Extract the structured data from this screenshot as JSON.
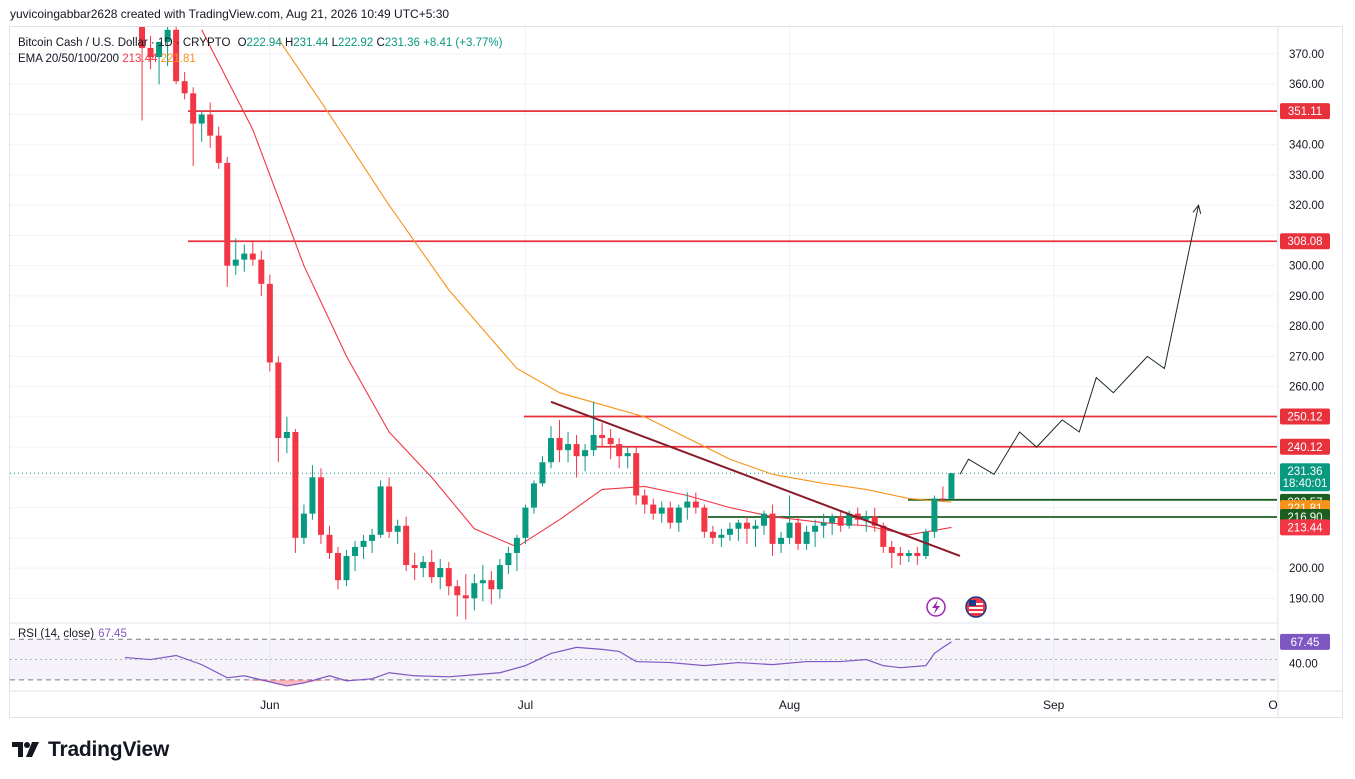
{
  "header": {
    "credit": "yuvicoingabbar2628 created with TradingView.com, Aug 21, 2026 10:49 UTC+5:30"
  },
  "legend": {
    "symbol": "Bitcoin Cash / U.S. Dollar · 1D · CRYPTO",
    "o_label": "O",
    "o": "222.94",
    "h_label": "H",
    "h": "231.44",
    "l_label": "L",
    "l": "222.92",
    "c_label": "C",
    "c": "231.36",
    "change": "+8.41 (+3.77%)",
    "ema_label": "EMA 20/50/100/200",
    "ema_a": "213.44",
    "ema_b": "221.81"
  },
  "rsi": {
    "label": "RSI (14, close)",
    "value": "67.45",
    "tick": "40.00"
  },
  "footer": {
    "brand": "TradingView"
  },
  "colors": {
    "up": "#089981",
    "down": "#f23645",
    "ema20": "#f23645",
    "ema50": "#f7931a",
    "resistance": "#e8313b",
    "support": "#1b5e20",
    "trendline": "#8b1a2b",
    "rsi": "#7e57c2"
  },
  "chart_data": {
    "type": "candlestick",
    "title": "Bitcoin Cash / U.S. Dollar · 1D · CRYPTO",
    "ylim": [
      182,
      377
    ],
    "y_ticks": [
      "370.00",
      "360.00",
      "340.00",
      "330.00",
      "320.00",
      "300.00",
      "290.00",
      "280.00",
      "270.00",
      "260.00",
      "200.00",
      "190.00"
    ],
    "x_ticks": [
      "Jun",
      "Jul",
      "Aug",
      "Sep",
      "O"
    ],
    "candles": [
      {
        "d": "2026-05-17",
        "o": 379,
        "h": 381,
        "l": 348,
        "c": 372
      },
      {
        "d": "2026-05-18",
        "o": 372,
        "h": 376,
        "l": 365,
        "c": 369
      },
      {
        "d": "2026-05-19",
        "o": 369,
        "h": 373,
        "l": 360,
        "c": 374
      },
      {
        "d": "2026-05-20",
        "o": 374,
        "h": 379,
        "l": 366,
        "c": 378
      },
      {
        "d": "2026-05-21",
        "o": 378,
        "h": 381,
        "l": 360,
        "c": 361
      },
      {
        "d": "2026-05-22",
        "o": 361,
        "h": 364,
        "l": 355,
        "c": 357
      },
      {
        "d": "2026-05-23",
        "o": 357,
        "h": 359,
        "l": 333,
        "c": 347
      },
      {
        "d": "2026-05-24",
        "o": 347,
        "h": 351,
        "l": 341,
        "c": 350
      },
      {
        "d": "2026-05-25",
        "o": 350,
        "h": 354,
        "l": 339,
        "c": 343
      },
      {
        "d": "2026-05-26",
        "o": 343,
        "h": 346,
        "l": 332,
        "c": 334
      },
      {
        "d": "2026-05-27",
        "o": 334,
        "h": 336,
        "l": 293,
        "c": 300
      },
      {
        "d": "2026-05-28",
        "o": 300,
        "h": 309,
        "l": 297,
        "c": 302
      },
      {
        "d": "2026-05-29",
        "o": 302,
        "h": 307,
        "l": 298,
        "c": 304
      },
      {
        "d": "2026-05-30",
        "o": 304,
        "h": 308,
        "l": 300,
        "c": 302
      },
      {
        "d": "2026-05-31",
        "o": 302,
        "h": 305,
        "l": 290,
        "c": 294
      },
      {
        "d": "2026-06-01",
        "o": 294,
        "h": 297,
        "l": 265,
        "c": 268
      },
      {
        "d": "2026-06-02",
        "o": 268,
        "h": 270,
        "l": 235,
        "c": 243
      },
      {
        "d": "2026-06-03",
        "o": 243,
        "h": 250,
        "l": 238,
        "c": 245
      },
      {
        "d": "2026-06-04",
        "o": 245,
        "h": 246,
        "l": 205,
        "c": 210
      },
      {
        "d": "2026-06-05",
        "o": 210,
        "h": 221,
        "l": 208,
        "c": 218
      },
      {
        "d": "2026-06-06",
        "o": 218,
        "h": 234,
        "l": 216,
        "c": 230
      },
      {
        "d": "2026-06-07",
        "o": 230,
        "h": 233,
        "l": 208,
        "c": 211
      },
      {
        "d": "2026-06-08",
        "o": 211,
        "h": 214,
        "l": 203,
        "c": 205
      },
      {
        "d": "2026-06-09",
        "o": 205,
        "h": 207,
        "l": 193,
        "c": 196
      },
      {
        "d": "2026-06-10",
        "o": 196,
        "h": 206,
        "l": 194,
        "c": 204
      },
      {
        "d": "2026-06-11",
        "o": 204,
        "h": 209,
        "l": 199,
        "c": 207
      },
      {
        "d": "2026-06-12",
        "o": 207,
        "h": 211,
        "l": 203,
        "c": 209
      },
      {
        "d": "2026-06-13",
        "o": 209,
        "h": 213,
        "l": 205,
        "c": 211
      },
      {
        "d": "2026-06-14",
        "o": 211,
        "h": 229,
        "l": 210,
        "c": 227
      },
      {
        "d": "2026-06-15",
        "o": 227,
        "h": 230,
        "l": 210,
        "c": 212
      },
      {
        "d": "2026-06-16",
        "o": 212,
        "h": 216,
        "l": 208,
        "c": 214
      },
      {
        "d": "2026-06-17",
        "o": 214,
        "h": 217,
        "l": 199,
        "c": 201
      },
      {
        "d": "2026-06-18",
        "o": 201,
        "h": 205,
        "l": 196,
        "c": 200
      },
      {
        "d": "2026-06-19",
        "o": 200,
        "h": 204,
        "l": 197,
        "c": 202
      },
      {
        "d": "2026-06-20",
        "o": 202,
        "h": 206,
        "l": 195,
        "c": 197
      },
      {
        "d": "2026-06-21",
        "o": 197,
        "h": 203,
        "l": 193,
        "c": 200
      },
      {
        "d": "2026-06-22",
        "o": 200,
        "h": 202,
        "l": 191,
        "c": 194
      },
      {
        "d": "2026-06-23",
        "o": 194,
        "h": 196,
        "l": 184,
        "c": 191
      },
      {
        "d": "2026-06-24",
        "o": 191,
        "h": 198,
        "l": 183,
        "c": 190
      },
      {
        "d": "2026-06-25",
        "o": 190,
        "h": 198,
        "l": 186,
        "c": 195
      },
      {
        "d": "2026-06-26",
        "o": 195,
        "h": 201,
        "l": 189,
        "c": 196
      },
      {
        "d": "2026-06-27",
        "o": 196,
        "h": 199,
        "l": 188,
        "c": 193
      },
      {
        "d": "2026-06-28",
        "o": 193,
        "h": 203,
        "l": 190,
        "c": 201
      },
      {
        "d": "2026-06-29",
        "o": 201,
        "h": 207,
        "l": 198,
        "c": 205
      },
      {
        "d": "2026-06-30",
        "o": 205,
        "h": 211,
        "l": 199,
        "c": 210
      },
      {
        "d": "2026-07-01",
        "o": 210,
        "h": 221,
        "l": 208,
        "c": 220
      },
      {
        "d": "2026-07-02",
        "o": 220,
        "h": 229,
        "l": 218,
        "c": 228
      },
      {
        "d": "2026-07-03",
        "o": 228,
        "h": 237,
        "l": 227,
        "c": 235
      },
      {
        "d": "2026-07-04",
        "o": 235,
        "h": 247,
        "l": 233,
        "c": 243
      },
      {
        "d": "2026-07-05",
        "o": 243,
        "h": 249,
        "l": 235,
        "c": 239
      },
      {
        "d": "2026-07-06",
        "o": 239,
        "h": 245,
        "l": 235,
        "c": 241
      },
      {
        "d": "2026-07-07",
        "o": 241,
        "h": 244,
        "l": 230,
        "c": 237
      },
      {
        "d": "2026-07-08",
        "o": 237,
        "h": 241,
        "l": 232,
        "c": 239
      },
      {
        "d": "2026-07-09",
        "o": 239,
        "h": 255,
        "l": 237,
        "c": 244
      },
      {
        "d": "2026-07-10",
        "o": 244,
        "h": 248,
        "l": 240,
        "c": 243
      },
      {
        "d": "2026-07-11",
        "o": 243,
        "h": 246,
        "l": 236,
        "c": 241
      },
      {
        "d": "2026-07-12",
        "o": 241,
        "h": 243,
        "l": 233,
        "c": 237
      },
      {
        "d": "2026-07-13",
        "o": 237,
        "h": 240,
        "l": 233,
        "c": 238
      },
      {
        "d": "2026-07-14",
        "o": 238,
        "h": 240,
        "l": 221,
        "c": 224
      },
      {
        "d": "2026-07-15",
        "o": 224,
        "h": 226,
        "l": 218,
        "c": 221
      },
      {
        "d": "2026-07-16",
        "o": 221,
        "h": 223,
        "l": 216,
        "c": 218
      },
      {
        "d": "2026-07-17",
        "o": 218,
        "h": 222,
        "l": 215,
        "c": 220
      },
      {
        "d": "2026-07-18",
        "o": 220,
        "h": 222,
        "l": 213,
        "c": 215
      },
      {
        "d": "2026-07-19",
        "o": 215,
        "h": 221,
        "l": 212,
        "c": 220
      },
      {
        "d": "2026-07-20",
        "o": 220,
        "h": 225,
        "l": 216,
        "c": 222
      },
      {
        "d": "2026-07-21",
        "o": 222,
        "h": 225,
        "l": 218,
        "c": 220
      },
      {
        "d": "2026-07-22",
        "o": 220,
        "h": 221,
        "l": 210,
        "c": 212
      },
      {
        "d": "2026-07-23",
        "o": 212,
        "h": 214,
        "l": 208,
        "c": 210
      },
      {
        "d": "2026-07-24",
        "o": 210,
        "h": 213,
        "l": 207,
        "c": 211
      },
      {
        "d": "2026-07-25",
        "o": 211,
        "h": 215,
        "l": 209,
        "c": 213
      },
      {
        "d": "2026-07-26",
        "o": 213,
        "h": 216,
        "l": 209,
        "c": 215
      },
      {
        "d": "2026-07-27",
        "o": 215,
        "h": 217,
        "l": 208,
        "c": 213
      },
      {
        "d": "2026-07-28",
        "o": 213,
        "h": 216,
        "l": 207,
        "c": 214
      },
      {
        "d": "2026-07-29",
        "o": 214,
        "h": 219,
        "l": 211,
        "c": 218
      },
      {
        "d": "2026-07-30",
        "o": 218,
        "h": 221,
        "l": 204,
        "c": 208
      },
      {
        "d": "2026-07-31",
        "o": 208,
        "h": 212,
        "l": 205,
        "c": 210
      },
      {
        "d": "2026-08-01",
        "o": 210,
        "h": 224,
        "l": 208,
        "c": 215
      },
      {
        "d": "2026-08-02",
        "o": 215,
        "h": 217,
        "l": 206,
        "c": 208
      },
      {
        "d": "2026-08-03",
        "o": 208,
        "h": 214,
        "l": 206,
        "c": 212
      },
      {
        "d": "2026-08-04",
        "o": 212,
        "h": 216,
        "l": 207,
        "c": 214
      },
      {
        "d": "2026-08-05",
        "o": 214,
        "h": 218,
        "l": 210,
        "c": 215
      },
      {
        "d": "2026-08-06",
        "o": 215,
        "h": 218,
        "l": 211,
        "c": 217
      },
      {
        "d": "2026-08-07",
        "o": 217,
        "h": 219,
        "l": 212,
        "c": 214
      },
      {
        "d": "2026-08-08",
        "o": 214,
        "h": 219,
        "l": 213,
        "c": 218
      },
      {
        "d": "2026-08-09",
        "o": 218,
        "h": 220,
        "l": 214,
        "c": 216
      },
      {
        "d": "2026-08-10",
        "o": 216,
        "h": 219,
        "l": 212,
        "c": 217
      },
      {
        "d": "2026-08-11",
        "o": 217,
        "h": 220,
        "l": 212,
        "c": 214
      },
      {
        "d": "2026-08-12",
        "o": 214,
        "h": 215,
        "l": 205,
        "c": 207
      },
      {
        "d": "2026-08-13",
        "o": 207,
        "h": 209,
        "l": 200,
        "c": 205
      },
      {
        "d": "2026-08-14",
        "o": 205,
        "h": 207,
        "l": 201,
        "c": 204
      },
      {
        "d": "2026-08-15",
        "o": 204,
        "h": 206,
        "l": 202,
        "c": 205
      },
      {
        "d": "2026-08-16",
        "o": 205,
        "h": 207,
        "l": 201,
        "c": 204
      },
      {
        "d": "2026-08-17",
        "o": 204,
        "h": 213,
        "l": 203,
        "c": 212
      },
      {
        "d": "2026-08-18",
        "o": 212,
        "h": 224,
        "l": 210,
        "c": 223
      },
      {
        "d": "2026-08-19",
        "o": 223,
        "h": 227,
        "l": 222,
        "c": 222.94
      },
      {
        "d": "2026-08-20",
        "o": 222.94,
        "h": 231.44,
        "l": 222.92,
        "c": 231.36
      }
    ],
    "ema20": [
      {
        "d": "2026-05-24",
        "v": 378
      },
      {
        "d": "2026-05-30",
        "v": 345
      },
      {
        "d": "2026-06-05",
        "v": 300
      },
      {
        "d": "2026-06-10",
        "v": 270
      },
      {
        "d": "2026-06-15",
        "v": 245
      },
      {
        "d": "2026-06-20",
        "v": 230
      },
      {
        "d": "2026-06-25",
        "v": 213
      },
      {
        "d": "2026-06-30",
        "v": 207
      },
      {
        "d": "2026-07-05",
        "v": 216
      },
      {
        "d": "2026-07-10",
        "v": 226
      },
      {
        "d": "2026-07-15",
        "v": 227
      },
      {
        "d": "2026-07-20",
        "v": 224
      },
      {
        "d": "2026-07-25",
        "v": 220
      },
      {
        "d": "2026-07-30",
        "v": 217
      },
      {
        "d": "2026-08-05",
        "v": 215
      },
      {
        "d": "2026-08-10",
        "v": 214
      },
      {
        "d": "2026-08-15",
        "v": 211
      },
      {
        "d": "2026-08-20",
        "v": 213.44
      }
    ],
    "ema50": [
      {
        "d": "2026-06-02",
        "v": 375
      },
      {
        "d": "2026-06-08",
        "v": 350
      },
      {
        "d": "2026-06-15",
        "v": 320
      },
      {
        "d": "2026-06-22",
        "v": 292
      },
      {
        "d": "2026-06-30",
        "v": 266
      },
      {
        "d": "2026-07-05",
        "v": 258
      },
      {
        "d": "2026-07-10",
        "v": 254
      },
      {
        "d": "2026-07-15",
        "v": 250
      },
      {
        "d": "2026-07-20",
        "v": 243
      },
      {
        "d": "2026-07-25",
        "v": 236
      },
      {
        "d": "2026-07-30",
        "v": 231
      },
      {
        "d": "2026-08-05",
        "v": 228
      },
      {
        "d": "2026-08-10",
        "v": 226
      },
      {
        "d": "2026-08-15",
        "v": 223
      },
      {
        "d": "2026-08-20",
        "v": 221.81
      }
    ],
    "resistance_levels": [
      351.11,
      308.08,
      250.12,
      240.12
    ],
    "support_levels": [
      222.57,
      216.9
    ],
    "trendline": [
      {
        "d": "2026-07-04",
        "v": 255
      },
      {
        "d": "2026-08-21",
        "v": 204
      }
    ],
    "projection": [
      {
        "d": "2026-08-21",
        "v": 231
      },
      {
        "d": "2026-08-22",
        "v": 236
      },
      {
        "d": "2026-08-25",
        "v": 231
      },
      {
        "d": "2026-08-28",
        "v": 245
      },
      {
        "d": "2026-08-30",
        "v": 240
      },
      {
        "d": "2026-09-02",
        "v": 249
      },
      {
        "d": "2026-09-04",
        "v": 245
      },
      {
        "d": "2026-09-06",
        "v": 263
      },
      {
        "d": "2026-09-08",
        "v": 258
      },
      {
        "d": "2026-09-12",
        "v": 270
      },
      {
        "d": "2026-09-14",
        "v": 266
      },
      {
        "d": "2026-09-18",
        "v": 320
      }
    ],
    "price_labels": [
      {
        "text": "351.11",
        "value": 351.11,
        "color": "#e8313b"
      },
      {
        "text": "308.08",
        "value": 308.08,
        "color": "#e8313b"
      },
      {
        "text": "250.12",
        "value": 250.12,
        "color": "#e8313b"
      },
      {
        "text": "240.12",
        "value": 240.12,
        "color": "#e8313b"
      },
      {
        "text": "231.36",
        "sub": "18:40:01",
        "value": 231.36,
        "color": "#089981"
      },
      {
        "text": "222.57",
        "value": 222.57,
        "color": "#1b5e20"
      },
      {
        "text": "221.81",
        "value": 221.81,
        "color": "#f7931a"
      },
      {
        "text": "216.90",
        "value": 216.9,
        "color": "#1b5e20"
      },
      {
        "text": "213.44",
        "value": 213.44,
        "color": "#f23645"
      }
    ],
    "rsi": {
      "ylim": [
        20,
        85
      ],
      "band": [
        30,
        70
      ],
      "mid": 50,
      "series": [
        {
          "d": "2026-05-15",
          "v": 52
        },
        {
          "d": "2026-05-18",
          "v": 50
        },
        {
          "d": "2026-05-21",
          "v": 54
        },
        {
          "d": "2026-05-24",
          "v": 45
        },
        {
          "d": "2026-05-27",
          "v": 32
        },
        {
          "d": "2026-05-29",
          "v": 34
        },
        {
          "d": "2026-06-01",
          "v": 28
        },
        {
          "d": "2026-06-03",
          "v": 24
        },
        {
          "d": "2026-06-05",
          "v": 27
        },
        {
          "d": "2026-06-08",
          "v": 34
        },
        {
          "d": "2026-06-10",
          "v": 29
        },
        {
          "d": "2026-06-13",
          "v": 31
        },
        {
          "d": "2026-06-15",
          "v": 37
        },
        {
          "d": "2026-06-18",
          "v": 34
        },
        {
          "d": "2026-06-22",
          "v": 33
        },
        {
          "d": "2026-06-25",
          "v": 35
        },
        {
          "d": "2026-06-28",
          "v": 37
        },
        {
          "d": "2026-07-01",
          "v": 44
        },
        {
          "d": "2026-07-04",
          "v": 56
        },
        {
          "d": "2026-07-07",
          "v": 62
        },
        {
          "d": "2026-07-10",
          "v": 60
        },
        {
          "d": "2026-07-12",
          "v": 58
        },
        {
          "d": "2026-07-14",
          "v": 48
        },
        {
          "d": "2026-07-18",
          "v": 47
        },
        {
          "d": "2026-07-22",
          "v": 44
        },
        {
          "d": "2026-07-26",
          "v": 47
        },
        {
          "d": "2026-07-30",
          "v": 45
        },
        {
          "d": "2026-08-03",
          "v": 48
        },
        {
          "d": "2026-08-07",
          "v": 48
        },
        {
          "d": "2026-08-10",
          "v": 50
        },
        {
          "d": "2026-08-12",
          "v": 44
        },
        {
          "d": "2026-08-14",
          "v": 42
        },
        {
          "d": "2026-08-17",
          "v": 44
        },
        {
          "d": "2026-08-18",
          "v": 56
        },
        {
          "d": "2026-08-19",
          "v": 62
        },
        {
          "d": "2026-08-20",
          "v": 67.45
        }
      ]
    }
  }
}
